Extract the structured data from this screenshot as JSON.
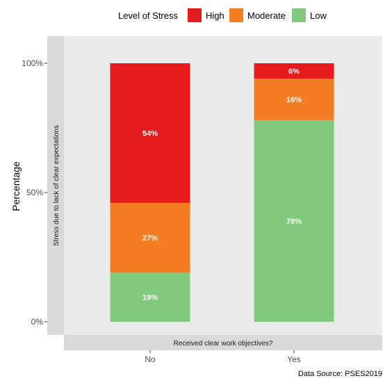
{
  "chart_data": {
    "type": "bar",
    "stacked": true,
    "categories": [
      "No",
      "Yes"
    ],
    "series": [
      {
        "name": "High",
        "values": [
          54,
          6
        ],
        "color": "#e41a1c",
        "labels": [
          "54%",
          "6%"
        ]
      },
      {
        "name": "Moderate",
        "values": [
          27,
          16
        ],
        "color": "#f47d23",
        "labels": [
          "27%",
          "16%"
        ]
      },
      {
        "name": "Low",
        "values": [
          19,
          78
        ],
        "color": "#80c97d",
        "labels": [
          "19%",
          "78%"
        ]
      }
    ],
    "legend": {
      "title": "Level of Stress",
      "position": "top"
    },
    "ylabel": "Percentage",
    "ylim": [
      0,
      100
    ],
    "yticks": [
      0,
      50,
      100
    ],
    "ytick_labels": [
      "0%",
      "50%",
      "100%"
    ],
    "strip_y": "Stress due to lack of clear expectations",
    "strip_x": "Received clear work objectives?",
    "caption": "Data Source: PSES2019",
    "grid": false,
    "panel_background": "#ebebeb",
    "strip_background": "#d9d9d9"
  }
}
